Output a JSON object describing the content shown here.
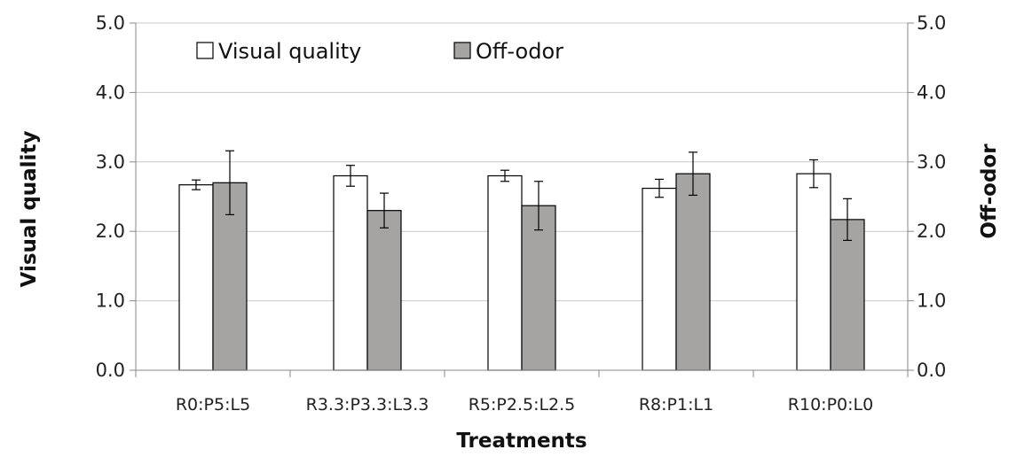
{
  "chart_data": {
    "type": "bar",
    "title": "",
    "categories": [
      "R0:P5:L5",
      "R3.3:P3.3:L3.3",
      "R5:P2.5:L2.5",
      "R8:P1:L1",
      "R10:P0:L0"
    ],
    "series": [
      {
        "name": "Visual quality",
        "axis": "left",
        "color": "#ffffff",
        "values": [
          2.67,
          2.8,
          2.8,
          2.62,
          2.83
        ],
        "errors": [
          0.07,
          0.15,
          0.08,
          0.13,
          0.2
        ]
      },
      {
        "name": "Off-odor",
        "axis": "right",
        "color": "#a6a3a3",
        "values": [
          2.7,
          2.3,
          2.37,
          2.83,
          2.17
        ],
        "errors": [
          0.46,
          0.25,
          0.35,
          0.31,
          0.3
        ]
      }
    ],
    "xlabel": "Treatments",
    "ylabel": "Visual quality",
    "y2label": "Off-odor",
    "ylim": [
      0,
      5
    ],
    "y2lim": [
      0,
      5
    ],
    "yticks": [
      "0.0",
      "1.0",
      "2.0",
      "3.0",
      "4.0",
      "5.0"
    ],
    "y2ticks": [
      "0.0",
      "1.0",
      "2.0",
      "3.0",
      "4.0",
      "5.0"
    ],
    "grid": true,
    "legend": "top-left"
  }
}
